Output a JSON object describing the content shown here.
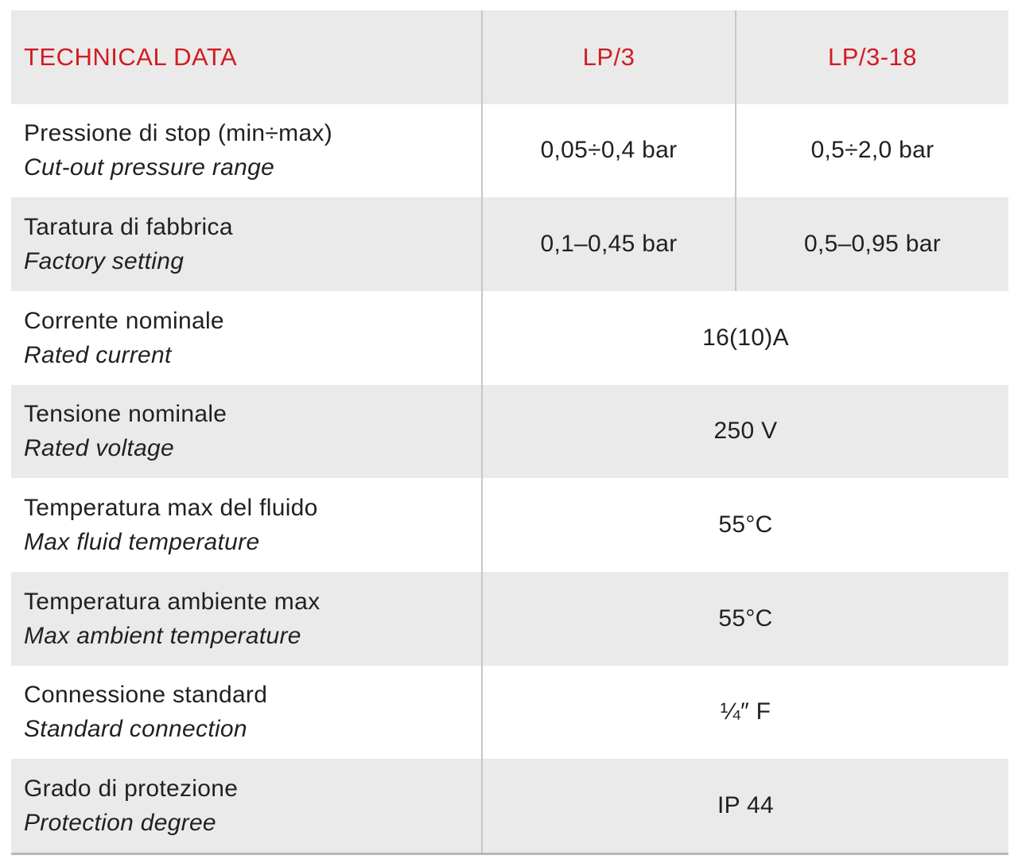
{
  "header": {
    "title": "TECHNICAL DATA",
    "col_lp3": "LP/3",
    "col_lp318": "LP/3-18"
  },
  "rows": [
    {
      "it": "Pressione di stop (min÷max)",
      "en": "Cut-out pressure range",
      "lp3": "0,05÷0,4 bar",
      "lp318": "0,5÷2,0 bar"
    },
    {
      "it": "Taratura di fabbrica",
      "en": "Factory setting",
      "lp3": "0,1–0,45 bar",
      "lp318": "0,5–0,95 bar"
    },
    {
      "it": "Corrente nominale",
      "en": "Rated current",
      "value": "16(10)A"
    },
    {
      "it": "Tensione nominale",
      "en": "Rated voltage",
      "value": "250 V"
    },
    {
      "it": "Temperatura max del fluido",
      "en": "Max fluid temperature",
      "value": "55°C"
    },
    {
      "it": "Temperatura ambiente max",
      "en": "Max ambient temperature",
      "value": "55°C"
    },
    {
      "it": "Connessione standard",
      "en": "Standard connection",
      "value": "¼″ F"
    },
    {
      "it": "Grado di protezione",
      "en": "Protection degree",
      "value": "IP 44"
    }
  ],
  "colors": {
    "accent_red": "#d11c23",
    "row_alt_bg": "#eaeaea",
    "divider": "#c6c6c6",
    "bottom_border": "#b7b7b7",
    "text": "#231f20",
    "page_bg": "#ffffff"
  }
}
